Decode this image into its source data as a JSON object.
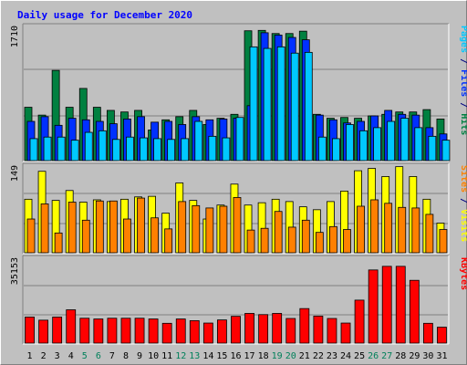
{
  "chart_data": {
    "type": "bar",
    "title": "Daily usage for December 2020",
    "categories": [
      "1",
      "2",
      "3",
      "4",
      "5",
      "6",
      "7",
      "8",
      "9",
      "10",
      "11",
      "12",
      "13",
      "14",
      "15",
      "16",
      "17",
      "18",
      "19",
      "20",
      "21",
      "22",
      "23",
      "24",
      "25",
      "26",
      "27",
      "28",
      "29",
      "30",
      "31"
    ],
    "weekend_days": [
      "5",
      "6",
      "12",
      "13",
      "19",
      "20",
      "26",
      "27"
    ],
    "panels": [
      {
        "max_label": "1710",
        "ymax": 1710,
        "right_label": [
          {
            "text": "Pages",
            "color": "#00c8ff"
          },
          {
            "text": " / ",
            "color": "#000080"
          },
          {
            "text": "Files",
            "color": "#0030ff"
          },
          {
            "text": " / ",
            "color": "#000080"
          },
          {
            "text": "Hits",
            "color": "#008040"
          }
        ],
        "series": [
          {
            "name": "Hits",
            "color": "#008040",
            "values": [
              680,
              580,
              1150,
              680,
              920,
              680,
              640,
              620,
              640,
              390,
              520,
              560,
              640,
              460,
              540,
              590,
              1655,
              1660,
              1620,
              1620,
              1650,
              590,
              540,
              550,
              540,
              570,
              590,
              620,
              620,
              650,
              530
            ]
          },
          {
            "name": "Files",
            "color": "#0030ff",
            "values": [
              500,
              560,
              450,
              540,
              520,
              500,
              470,
              530,
              560,
              490,
              500,
              460,
              560,
              520,
              530,
              540,
              700,
              1630,
              1600,
              1570,
              1540,
              580,
              520,
              480,
              500,
              570,
              640,
              590,
              580,
              420,
              340
            ]
          },
          {
            "name": "Pages",
            "color": "#00c8ff",
            "values": [
              280,
              300,
              300,
              260,
              360,
              380,
              270,
              300,
              290,
              280,
              270,
              280,
              500,
              310,
              290,
              550,
              1450,
              1430,
              1450,
              1370,
              1380,
              300,
              280,
              460,
              380,
              420,
              500,
              540,
              420,
              310,
              260
            ]
          }
        ]
      },
      {
        "max_label": "149",
        "ymax": 149,
        "right_label": [
          {
            "text": "Sites",
            "color": "#ff8000"
          },
          {
            "text": " / ",
            "color": "#000080"
          },
          {
            "text": "Visits",
            "color": "#ffff00"
          }
        ],
        "series": [
          {
            "name": "Visits",
            "color": "#ffff00",
            "values": [
              92,
              140,
              90,
              107,
              87,
              91,
              88,
              92,
              96,
              97,
              68,
              120,
              90,
              58,
              82,
              118,
              82,
              86,
              92,
              88,
              79,
              74,
              88,
              106,
              141,
              145,
              131,
              148,
              131,
              92,
              51
            ]
          },
          {
            "name": "Sites",
            "color": "#ff8000",
            "values": [
              58,
              84,
              34,
              87,
              56,
              89,
              89,
              58,
              94,
              60,
              41,
              88,
              81,
              77,
              80,
              95,
              39,
              42,
              71,
              44,
              56,
              35,
              45,
              40,
              80,
              91,
              85,
              78,
              77,
              66,
              40
            ]
          }
        ]
      },
      {
        "max_label": "35153",
        "ymax": 35153,
        "right_label": [
          {
            "text": "KBytes",
            "color": "#ff0000"
          }
        ],
        "series": [
          {
            "name": "KBytes",
            "color": "#ff0000",
            "values": [
              10800,
              9500,
              10800,
              13800,
              10300,
              10000,
              10300,
              10300,
              10300,
              10000,
              8200,
              10000,
              9300,
              8300,
              9600,
              11100,
              12300,
              11800,
              12300,
              10200,
              14300,
              11200,
              10200,
              8300,
              17800,
              30300,
              31800,
              31800,
              26000,
              8200,
              6600
            ]
          }
        ]
      }
    ],
    "ylabel": "",
    "xlabel": ""
  }
}
